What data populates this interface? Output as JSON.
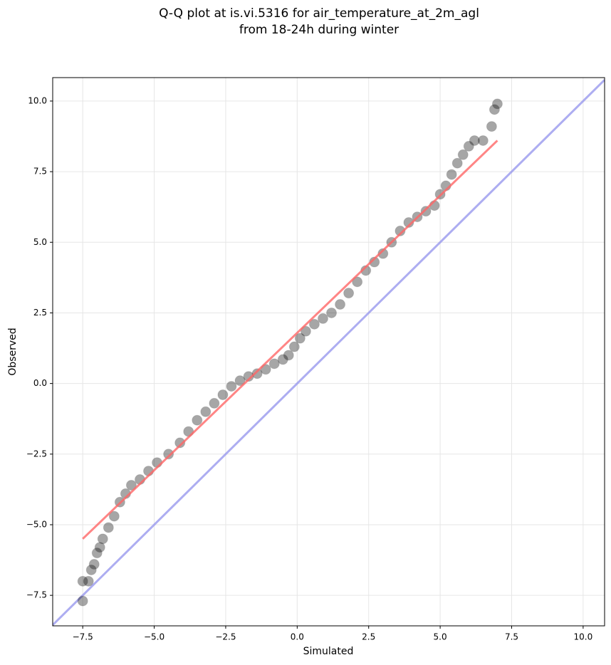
{
  "chart_data": {
    "type": "scatter",
    "title": [
      "Q-Q plot at is.vi.5316 for air_temperature_at_2m_agl",
      "from 18-24h during winter"
    ],
    "xlabel": "Simulated",
    "ylabel": "Observed",
    "x": [
      -7.5,
      -7.5,
      -7.3,
      -7.2,
      -7.1,
      -7.0,
      -6.9,
      -6.8,
      -6.6,
      -6.4,
      -6.2,
      -6.0,
      -5.8,
      -5.5,
      -5.2,
      -4.9,
      -4.5,
      -4.1,
      -3.8,
      -3.5,
      -3.2,
      -2.9,
      -2.6,
      -2.3,
      -2.0,
      -1.7,
      -1.4,
      -1.1,
      -0.8,
      -0.5,
      -0.3,
      -0.1,
      0.1,
      0.3,
      0.6,
      0.9,
      1.2,
      1.5,
      1.8,
      2.1,
      2.4,
      2.7,
      3.0,
      3.3,
      3.6,
      3.9,
      4.2,
      4.5,
      4.8,
      5.0,
      5.2,
      5.4,
      5.6,
      5.8,
      6.0,
      6.2,
      6.5,
      6.8,
      6.9,
      7.0
    ],
    "values": [
      -7.7,
      -7.0,
      -7.0,
      -6.6,
      -6.4,
      -6.0,
      -5.8,
      -5.5,
      -5.1,
      -4.7,
      -4.2,
      -3.9,
      -3.6,
      -3.4,
      -3.1,
      -2.8,
      -2.5,
      -2.1,
      -1.7,
      -1.3,
      -1.0,
      -0.7,
      -0.4,
      -0.1,
      0.1,
      0.25,
      0.35,
      0.5,
      0.7,
      0.85,
      1.0,
      1.3,
      1.6,
      1.85,
      2.1,
      2.3,
      2.5,
      2.8,
      3.2,
      3.6,
      4.0,
      4.3,
      4.6,
      5.0,
      5.4,
      5.7,
      5.9,
      6.1,
      6.3,
      6.7,
      7.0,
      7.4,
      7.8,
      8.1,
      8.4,
      8.6,
      8.6,
      9.1,
      9.7,
      9.9
    ],
    "color": "#000000",
    "fit_line": {
      "x": [
        -7.5,
        7.0
      ],
      "y": [
        -5.5,
        8.6
      ],
      "color": "#ff6666"
    },
    "reference_line": {
      "x": [
        -8.55,
        10.75
      ],
      "y": [
        -8.55,
        10.75
      ],
      "color": "#9999ee"
    },
    "xlim": [
      -8.55,
      10.75
    ],
    "ylim": [
      -8.58,
      10.83
    ],
    "xticks": [
      {
        "value": -7.5,
        "label": "−7.5"
      },
      {
        "value": -5,
        "label": "−5.0"
      },
      {
        "value": -2.5,
        "label": "−2.5"
      },
      {
        "value": 0,
        "label": "0.0"
      },
      {
        "value": 2.5,
        "label": "2.5"
      },
      {
        "value": 5,
        "label": "5.0"
      },
      {
        "value": 7.5,
        "label": "7.5"
      },
      {
        "value": 10,
        "label": "10.0"
      }
    ],
    "yticks": [
      {
        "value": -7.5,
        "label": "−7.5"
      },
      {
        "value": -5,
        "label": "−5.0"
      },
      {
        "value": -2.5,
        "label": "−2.5"
      },
      {
        "value": 0,
        "label": "0.0"
      },
      {
        "value": 2.5,
        "label": "2.5"
      },
      {
        "value": 5,
        "label": "5.0"
      },
      {
        "value": 7.5,
        "label": "7.5"
      },
      {
        "value": 10,
        "label": "10.0"
      }
    ],
    "grid": true
  }
}
